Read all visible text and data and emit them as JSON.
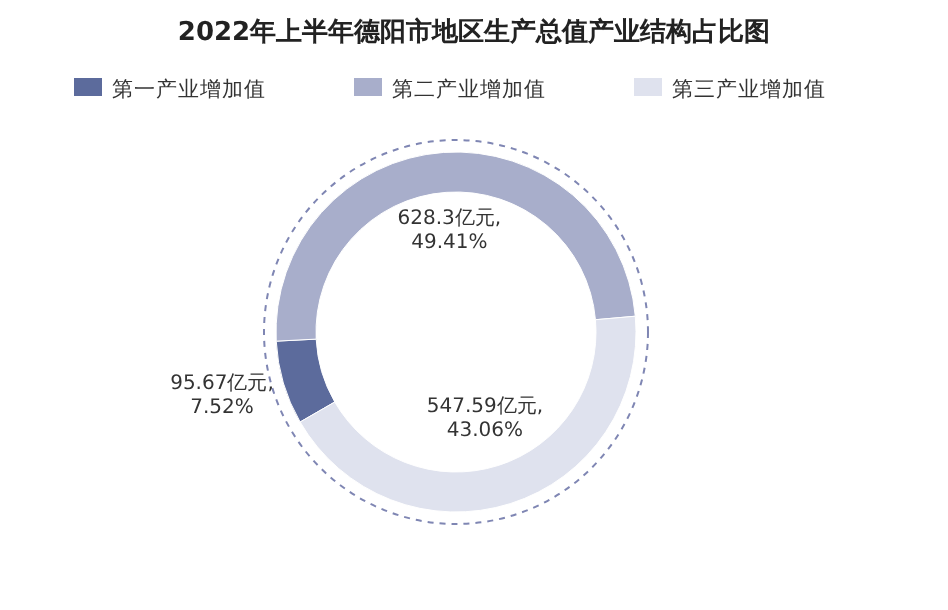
{
  "chart_data": {
    "type": "donut",
    "title": "2022年上半年德阳市地区生产总值产业结构占比图",
    "categories": [
      "第一产业增加值",
      "第二产业增加值",
      "第三产业增加值"
    ],
    "values": [
      95.67,
      628.3,
      547.59
    ],
    "colors": [
      "#5c6b9c",
      "#a8aecb",
      "#dfe2ee"
    ],
    "value_labels": [
      "95.67亿元,\n7.52%",
      "628.3亿元,\n49.41%",
      "547.59亿元,\n43.06%"
    ],
    "legend": "top"
  }
}
